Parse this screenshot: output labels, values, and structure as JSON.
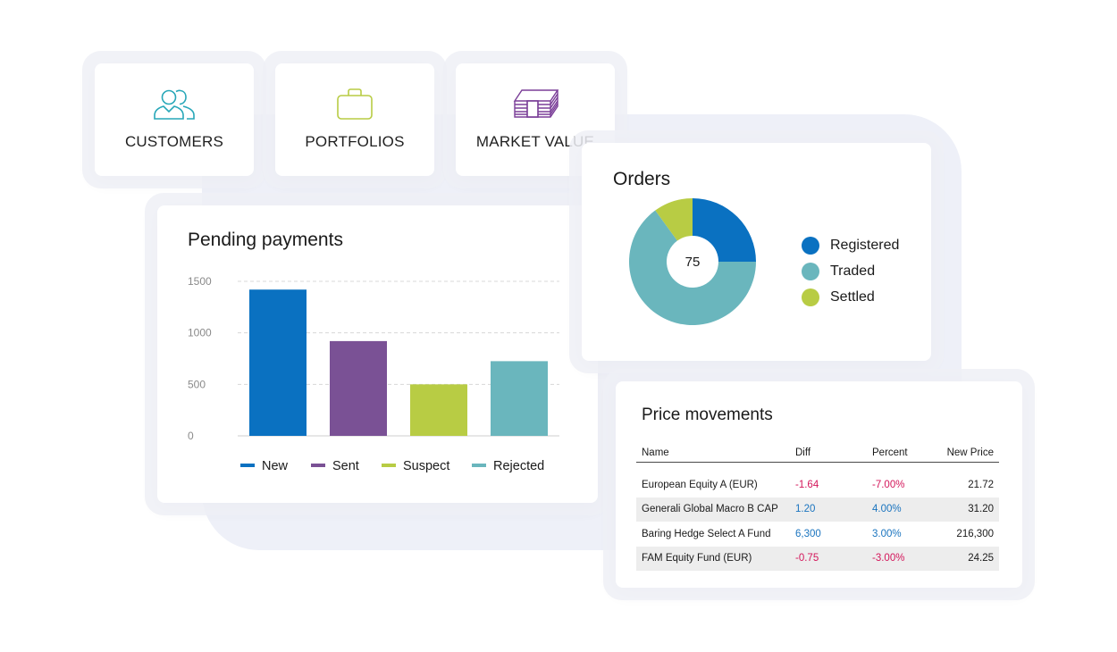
{
  "tiles": {
    "customers": {
      "label": "CUSTOMERS",
      "icon": "customers-icon"
    },
    "portfolios": {
      "label": "PORTFOLIOS",
      "icon": "briefcase-icon"
    },
    "market_value": {
      "label": "MARKET VALUE",
      "icon": "banknotes-icon"
    }
  },
  "colors": {
    "blue": "#0a71c1",
    "purple": "#7a5195",
    "lime": "#b8cc44",
    "teal": "#6ab6bd",
    "negative": "#d4175b",
    "positive": "#1a74bf",
    "icon_teal": "#27a7b8",
    "icon_lime": "#b8cc44",
    "icon_purple": "#7b3f98"
  },
  "pending_payments": {
    "title": "Pending payments",
    "chart_data": {
      "type": "bar",
      "categories": [
        "New",
        "Sent",
        "Suspect",
        "Rejected"
      ],
      "values": [
        1420,
        920,
        500,
        725
      ],
      "ylim": [
        0,
        1500
      ],
      "yticks": [
        "0",
        "500",
        "1000",
        "1500"
      ],
      "grid": true,
      "legend": "bottom",
      "colors": [
        "#0a71c1",
        "#7a5195",
        "#b8cc44",
        "#6ab6bd"
      ]
    }
  },
  "orders": {
    "title": "Orders",
    "center_label": "75",
    "legend": [
      "Registered",
      "Traded",
      "Settled"
    ],
    "chart_data": {
      "type": "pie",
      "labels": [
        "Registered",
        "Traded",
        "Settled"
      ],
      "values": [
        25,
        65,
        10
      ],
      "colors": [
        "#0a71c1",
        "#6ab6bd",
        "#b8cc44"
      ],
      "legend": "right"
    }
  },
  "price_movements": {
    "title": "Price movements",
    "columns": [
      "Name",
      "Diff",
      "Percent",
      "New Price"
    ],
    "rows": [
      {
        "name": "European Equity A (EUR)",
        "diff": "-1.64",
        "percent": "-7.00%",
        "new_price": "21.72",
        "direction": "neg"
      },
      {
        "name": "Generali Global Macro B CAP",
        "diff": "1.20",
        "percent": "4.00%",
        "new_price": "31.20",
        "direction": "pos"
      },
      {
        "name": "Baring Hedge Select A Fund",
        "diff": "6,300",
        "percent": "3.00%",
        "new_price": "216,300",
        "direction": "pos"
      },
      {
        "name": "FAM Equity Fund (EUR)",
        "diff": "-0.75",
        "percent": "-3.00%",
        "new_price": "24.25",
        "direction": "neg"
      }
    ]
  }
}
